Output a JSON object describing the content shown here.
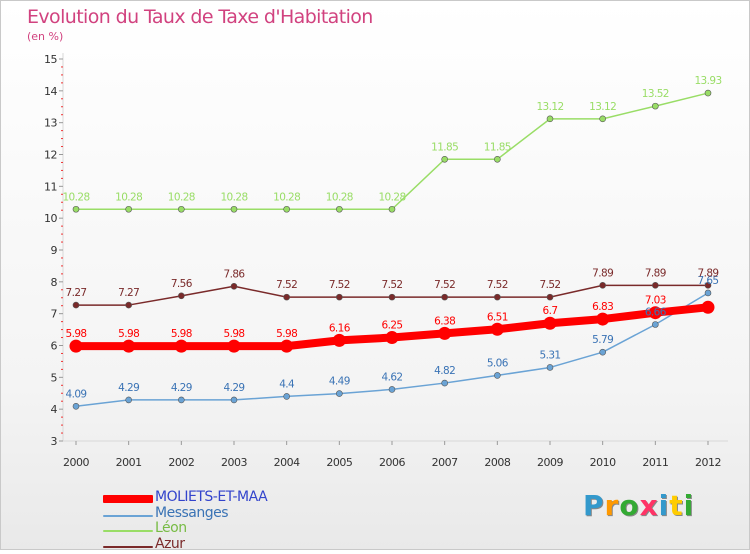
{
  "chart_data": {
    "type": "line",
    "title": "Evolution du Taux de Taxe d'Habitation",
    "subtitle": "(en %)",
    "x": [
      "2000",
      "2001",
      "2002",
      "2003",
      "2004",
      "2005",
      "2006",
      "2007",
      "2008",
      "2009",
      "2010",
      "2011",
      "2012"
    ],
    "ylim": [
      3,
      15
    ],
    "yticks": [
      3,
      4,
      5,
      6,
      7,
      8,
      9,
      10,
      11,
      12,
      13,
      14,
      15
    ],
    "grid": false,
    "legend_position": "bottom-left",
    "series": [
      {
        "name": "MOLIETS-ET-MAA",
        "color": "#ff0000",
        "label_color": "#ff0000",
        "values": [
          5.98,
          5.98,
          5.98,
          5.98,
          5.98,
          6.16,
          6.25,
          6.38,
          6.51,
          6.7,
          6.83,
          7.03,
          7.2
        ],
        "labels": [
          "5.98",
          "5.98",
          "5.98",
          "5.98",
          "5.98",
          "6.16",
          "6.25",
          "6.38",
          "6.51",
          "6.7",
          "6.83",
          "7.03",
          ""
        ]
      },
      {
        "name": "Messanges",
        "color": "#6aa3d5",
        "label_color": "#3a73b5",
        "values": [
          4.09,
          4.29,
          4.29,
          4.29,
          4.4,
          4.49,
          4.62,
          4.82,
          5.06,
          5.31,
          5.79,
          6.66,
          7.65
        ],
        "labels": [
          "4.09",
          "4.29",
          "4.29",
          "4.29",
          "4.4",
          "4.49",
          "4.62",
          "4.82",
          "5.06",
          "5.31",
          "5.79",
          "6.66",
          "7.65"
        ]
      },
      {
        "name": "Léon",
        "color": "#99dd66",
        "label_color": "#99dd66",
        "values": [
          10.28,
          10.28,
          10.28,
          10.28,
          10.28,
          10.28,
          10.28,
          11.85,
          11.85,
          13.12,
          13.12,
          13.52,
          13.93
        ],
        "labels": [
          "10.28",
          "10.28",
          "10.28",
          "10.28",
          "10.28",
          "10.28",
          "10.28",
          "11.85",
          "11.85",
          "13.12",
          "13.12",
          "13.52",
          "13.93"
        ]
      },
      {
        "name": "Azur",
        "color": "#7a2a2a",
        "label_color": "#7a2a2a",
        "values": [
          7.27,
          7.27,
          7.56,
          7.86,
          7.52,
          7.52,
          7.52,
          7.52,
          7.52,
          7.52,
          7.89,
          7.89,
          7.89
        ],
        "labels": [
          "7.27",
          "7.27",
          "7.56",
          "7.86",
          "7.52",
          "7.52",
          "7.52",
          "7.52",
          "7.52",
          "7.52",
          "7.89",
          "7.89",
          "7.89"
        ]
      }
    ]
  },
  "logo": {
    "text": "Proxiti",
    "colors": [
      "#3399cc",
      "#ff9900",
      "#33aa33",
      "#ff3366",
      "#3399cc",
      "#ffcc00",
      "#33aa33"
    ]
  }
}
